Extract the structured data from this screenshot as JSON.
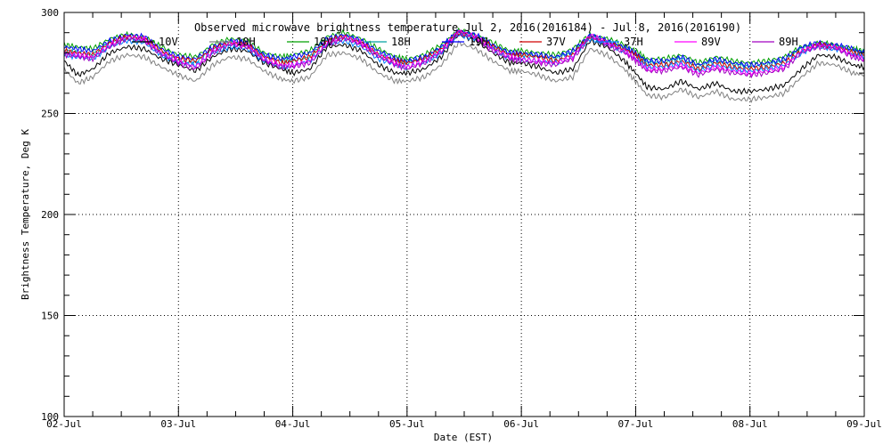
{
  "chart_data": {
    "type": "line",
    "title": "Observed microwave brightness temperature Jul  2, 2016(2016184) - Jul  8, 2016(2016190)",
    "xlabel": "Date (EST)",
    "ylabel": "Brightness Temperature, Deg K",
    "ylim": [
      100,
      300
    ],
    "yticks": [
      100,
      150,
      200,
      250,
      300
    ],
    "x_tick_labels": [
      "02-Jul",
      "03-Jul",
      "04-Jul",
      "05-Jul",
      "06-Jul",
      "07-Jul",
      "08-Jul",
      "09-Jul"
    ],
    "x_range_days": [
      0,
      7
    ],
    "grid": true,
    "legend_position": "top",
    "series": [
      {
        "name": "10V",
        "color": "#000000",
        "x": [
          0,
          0.12,
          0.25,
          0.4,
          0.55,
          0.7,
          0.85,
          1.0,
          1.15,
          1.3,
          1.45,
          1.6,
          1.75,
          1.9,
          2.0,
          2.15,
          2.3,
          2.45,
          2.6,
          2.75,
          2.9,
          3.0,
          3.15,
          3.3,
          3.45,
          3.6,
          3.75,
          3.9,
          4.0,
          4.15,
          4.3,
          4.45,
          4.6,
          4.75,
          4.9,
          5.0,
          5.1,
          5.25,
          5.4,
          5.55,
          5.7,
          5.85,
          6.0,
          6.15,
          6.3,
          6.45,
          6.6,
          6.75,
          6.9,
          7.0
        ],
        "values": [
          276,
          269,
          272,
          280,
          283,
          282,
          277,
          274,
          271,
          278,
          282,
          281,
          275,
          272,
          270,
          272,
          283,
          284,
          281,
          274,
          270,
          270,
          272,
          278,
          289,
          286,
          280,
          275,
          275,
          273,
          270,
          272,
          286,
          283,
          276,
          270,
          263,
          262,
          266,
          262,
          265,
          261,
          261,
          262,
          264,
          272,
          279,
          278,
          274,
          273
        ]
      },
      {
        "name": "10H",
        "color": "#808080",
        "x": [
          0,
          0.12,
          0.25,
          0.4,
          0.55,
          0.7,
          0.85,
          1.0,
          1.15,
          1.3,
          1.45,
          1.6,
          1.75,
          1.9,
          2.0,
          2.15,
          2.3,
          2.45,
          2.6,
          2.75,
          2.9,
          3.0,
          3.15,
          3.3,
          3.45,
          3.6,
          3.75,
          3.9,
          4.0,
          4.15,
          4.3,
          4.45,
          4.6,
          4.75,
          4.9,
          5.0,
          5.1,
          5.25,
          5.4,
          5.55,
          5.7,
          5.85,
          6.0,
          6.15,
          6.3,
          6.45,
          6.6,
          6.75,
          6.9,
          7.0
        ],
        "values": [
          272,
          265,
          268,
          276,
          279,
          278,
          273,
          269,
          266,
          274,
          278,
          277,
          271,
          267,
          266,
          268,
          279,
          280,
          277,
          270,
          266,
          266,
          268,
          274,
          285,
          282,
          276,
          271,
          271,
          269,
          266,
          268,
          282,
          279,
          272,
          266,
          259,
          258,
          262,
          258,
          261,
          257,
          257,
          258,
          260,
          268,
          275,
          274,
          270,
          269
        ]
      },
      {
        "name": "18V",
        "color": "#00a000",
        "x": [
          0,
          0.12,
          0.25,
          0.4,
          0.55,
          0.7,
          0.85,
          1.0,
          1.15,
          1.3,
          1.45,
          1.6,
          1.75,
          1.9,
          2.0,
          2.15,
          2.3,
          2.45,
          2.6,
          2.75,
          2.9,
          3.0,
          3.15,
          3.3,
          3.45,
          3.6,
          3.75,
          3.9,
          4.0,
          4.15,
          4.3,
          4.45,
          4.6,
          4.75,
          4.9,
          5.0,
          5.1,
          5.25,
          5.4,
          5.55,
          5.7,
          5.85,
          6.0,
          6.15,
          6.3,
          6.45,
          6.6,
          6.75,
          6.9,
          7.0
        ],
        "values": [
          284,
          283,
          282,
          287,
          289,
          288,
          283,
          279,
          278,
          284,
          287,
          286,
          280,
          278,
          279,
          281,
          288,
          290,
          287,
          282,
          278,
          277,
          279,
          284,
          291,
          289,
          285,
          281,
          281,
          280,
          279,
          282,
          289,
          287,
          284,
          281,
          277,
          277,
          279,
          275,
          278,
          276,
          275,
          276,
          278,
          283,
          285,
          284,
          282,
          281
        ]
      },
      {
        "name": "18H",
        "color": "#00a0a0",
        "x": [
          0,
          0.12,
          0.25,
          0.4,
          0.55,
          0.7,
          0.85,
          1.0,
          1.15,
          1.3,
          1.45,
          1.6,
          1.75,
          1.9,
          2.0,
          2.15,
          2.3,
          2.45,
          2.6,
          2.75,
          2.9,
          3.0,
          3.15,
          3.3,
          3.45,
          3.6,
          3.75,
          3.9,
          4.0,
          4.15,
          4.3,
          4.45,
          4.6,
          4.75,
          4.9,
          5.0,
          5.1,
          5.25,
          5.4,
          5.55,
          5.7,
          5.85,
          6.0,
          6.15,
          6.3,
          6.45,
          6.6,
          6.75,
          6.9,
          7.0
        ],
        "values": [
          281,
          280,
          279,
          285,
          287,
          286,
          280,
          276,
          275,
          282,
          285,
          284,
          278,
          276,
          276,
          278,
          286,
          288,
          285,
          279,
          276,
          275,
          277,
          282,
          290,
          288,
          283,
          279,
          279,
          278,
          277,
          280,
          288,
          285,
          282,
          279,
          275,
          275,
          277,
          273,
          276,
          274,
          273,
          274,
          276,
          282,
          284,
          283,
          281,
          280
        ]
      },
      {
        "name": "19H",
        "color": "#0000ff",
        "x": [
          0,
          0.12,
          0.25,
          0.4,
          0.55,
          0.7,
          0.85,
          1.0,
          1.15,
          1.3,
          1.45,
          1.6,
          1.75,
          1.9,
          2.0,
          2.15,
          2.3,
          2.45,
          2.6,
          2.75,
          2.9,
          3.0,
          3.15,
          3.3,
          3.45,
          3.6,
          3.75,
          3.9,
          4.0,
          4.15,
          4.3,
          4.45,
          4.6,
          4.75,
          4.9,
          5.0,
          5.1,
          5.25,
          5.4,
          5.55,
          5.7,
          5.85,
          6.0,
          6.15,
          6.3,
          6.45,
          6.6,
          6.75,
          6.9,
          7.0
        ],
        "values": [
          283,
          282,
          281,
          286,
          289,
          288,
          282,
          278,
          277,
          283,
          286,
          285,
          279,
          277,
          278,
          280,
          287,
          289,
          286,
          281,
          277,
          276,
          278,
          283,
          291,
          289,
          284,
          280,
          280,
          279,
          278,
          281,
          289,
          286,
          283,
          280,
          276,
          276,
          278,
          274,
          277,
          275,
          274,
          275,
          277,
          283,
          285,
          284,
          282,
          280
        ]
      },
      {
        "name": "37V",
        "color": "#d00000",
        "x": [
          0,
          0.12,
          0.25,
          0.4,
          0.55,
          0.7,
          0.85,
          1.0,
          1.15,
          1.3,
          1.45,
          1.6,
          1.75,
          1.9,
          2.0,
          2.15,
          2.3,
          2.45,
          2.6,
          2.75,
          2.9,
          3.0,
          3.15,
          3.3,
          3.45,
          3.6,
          3.75,
          3.9,
          4.0,
          4.15,
          4.3,
          4.45,
          4.6,
          4.75,
          4.9,
          5.0,
          5.1,
          5.25,
          5.4,
          5.55,
          5.7,
          5.85,
          6.0,
          6.15,
          6.3,
          6.45,
          6.6,
          6.75,
          6.9,
          7.0
        ],
        "values": [
          281,
          280,
          279,
          285,
          288,
          287,
          281,
          277,
          276,
          282,
          285,
          284,
          278,
          275,
          276,
          278,
          286,
          288,
          285,
          279,
          276,
          275,
          277,
          282,
          290,
          288,
          283,
          279,
          279,
          278,
          276,
          279,
          288,
          285,
          282,
          279,
          274,
          274,
          276,
          272,
          275,
          273,
          272,
          273,
          275,
          281,
          284,
          283,
          280,
          279
        ]
      },
      {
        "name": "37H",
        "color": "#0080ff",
        "x": [
          0,
          0.12,
          0.25,
          0.4,
          0.55,
          0.7,
          0.85,
          1.0,
          1.15,
          1.3,
          1.45,
          1.6,
          1.75,
          1.9,
          2.0,
          2.15,
          2.3,
          2.45,
          2.6,
          2.75,
          2.9,
          3.0,
          3.15,
          3.3,
          3.45,
          3.6,
          3.75,
          3.9,
          4.0,
          4.15,
          4.3,
          4.45,
          4.6,
          4.75,
          4.9,
          5.0,
          5.1,
          5.25,
          5.4,
          5.55,
          5.7,
          5.85,
          6.0,
          6.15,
          6.3,
          6.45,
          6.6,
          6.75,
          6.9,
          7.0
        ],
        "values": [
          279,
          278,
          277,
          283,
          286,
          285,
          279,
          275,
          274,
          280,
          283,
          282,
          276,
          273,
          274,
          276,
          284,
          286,
          283,
          277,
          274,
          273,
          275,
          280,
          289,
          287,
          282,
          277,
          277,
          276,
          275,
          278,
          287,
          284,
          281,
          277,
          273,
          273,
          275,
          271,
          274,
          272,
          271,
          272,
          274,
          280,
          283,
          282,
          279,
          278
        ]
      },
      {
        "name": "89V",
        "color": "#ff00ff",
        "x": [
          0,
          0.12,
          0.25,
          0.4,
          0.55,
          0.7,
          0.85,
          1.0,
          1.15,
          1.3,
          1.45,
          1.6,
          1.75,
          1.9,
          2.0,
          2.15,
          2.3,
          2.45,
          2.6,
          2.75,
          2.9,
          3.0,
          3.15,
          3.3,
          3.45,
          3.6,
          3.75,
          3.9,
          4.0,
          4.15,
          4.3,
          4.45,
          4.6,
          4.75,
          4.9,
          5.0,
          5.1,
          5.25,
          5.4,
          5.55,
          5.7,
          5.85,
          6.0,
          6.15,
          6.3,
          6.45,
          6.6,
          6.75,
          6.9,
          7.0
        ],
        "values": [
          280,
          279,
          278,
          284,
          288,
          287,
          280,
          276,
          273,
          281,
          285,
          284,
          277,
          274,
          274,
          276,
          285,
          288,
          285,
          279,
          275,
          273,
          276,
          281,
          291,
          288,
          282,
          278,
          277,
          276,
          275,
          278,
          289,
          285,
          281,
          277,
          272,
          272,
          274,
          270,
          273,
          271,
          270,
          271,
          273,
          281,
          284,
          283,
          279,
          277
        ]
      },
      {
        "name": "89H",
        "color": "#a000c0",
        "x": [
          0,
          0.12,
          0.25,
          0.4,
          0.55,
          0.7,
          0.85,
          1.0,
          1.15,
          1.3,
          1.45,
          1.6,
          1.75,
          1.9,
          2.0,
          2.15,
          2.3,
          2.45,
          2.6,
          2.75,
          2.9,
          3.0,
          3.15,
          3.3,
          3.45,
          3.6,
          3.75,
          3.9,
          4.0,
          4.15,
          4.3,
          4.45,
          4.6,
          4.75,
          4.9,
          5.0,
          5.1,
          5.25,
          5.4,
          5.55,
          5.7,
          5.85,
          6.0,
          6.15,
          6.3,
          6.45,
          6.6,
          6.75,
          6.9,
          7.0
        ],
        "values": [
          279,
          278,
          277,
          283,
          287,
          286,
          279,
          275,
          272,
          280,
          284,
          283,
          276,
          273,
          273,
          275,
          284,
          287,
          284,
          278,
          274,
          272,
          275,
          280,
          290,
          287,
          281,
          277,
          276,
          275,
          274,
          277,
          288,
          284,
          280,
          276,
          271,
          271,
          273,
          269,
          272,
          270,
          269,
          270,
          272,
          280,
          283,
          282,
          278,
          276
        ]
      }
    ]
  }
}
